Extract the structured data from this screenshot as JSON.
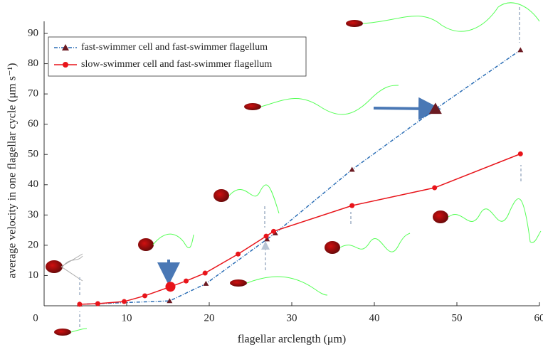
{
  "chart_data": {
    "type": "line",
    "xlabel": "flagellar arclength (μm)",
    "ylabel": "average velocity in one flagellar cycle (μm s⁻¹)",
    "xlim": [
      0,
      60
    ],
    "ylim": [
      0,
      90
    ],
    "xticks": [
      0,
      10,
      20,
      30,
      40,
      50,
      60
    ],
    "yticks": [
      10,
      20,
      30,
      40,
      50,
      60,
      70,
      80,
      90
    ],
    "legend": "upper left",
    "series": [
      {
        "name": "fast-swimmer cell and fast-swimmer flagellum",
        "color": "#2a6db5",
        "marker_color": "#6b1a22",
        "marker": "triangle",
        "dash": true,
        "large_marker_index": 6,
        "x": [
          4.3,
          15.2,
          19.6,
          27.0,
          28.0,
          37.3,
          47.4,
          57.7
        ],
        "values": [
          0.5,
          1.6,
          7.3,
          22,
          24,
          45,
          65,
          84.5
        ]
      },
      {
        "name": "slow-swimmer cell and fast-swimmer flagellum",
        "color": "#e8141a",
        "marker_color": "#e8141a",
        "marker": "circle",
        "dash": false,
        "large_marker_index": 4,
        "x": [
          4.3,
          6.5,
          9.7,
          12.2,
          15.3,
          17.2,
          19.5,
          23.5,
          26.9,
          27.8,
          37.3,
          47.3,
          57.7
        ],
        "values": [
          0.5,
          0.7,
          1.4,
          3.3,
          6.3,
          8.2,
          10.8,
          17.1,
          23,
          24.6,
          33.1,
          39,
          50.2
        ]
      }
    ]
  }
}
